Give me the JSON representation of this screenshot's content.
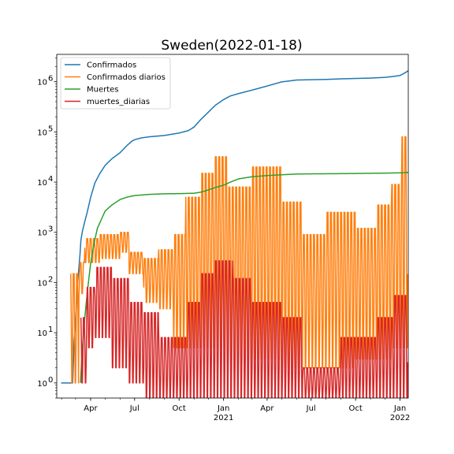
{
  "chart_data": {
    "type": "line",
    "title": "Sweden(2022-01-18)",
    "xlabel": "",
    "ylabel": "",
    "yscale": "log",
    "ylim": [
      0.5,
      3500000
    ],
    "xlim": [
      "2020-01-22",
      "2022-01-18"
    ],
    "grid": false,
    "legend_position": "top-left",
    "x_ticks": [
      {
        "date": "2020-04-01",
        "label": "Apr",
        "sublabel": ""
      },
      {
        "date": "2020-07-01",
        "label": "Jul",
        "sublabel": ""
      },
      {
        "date": "2020-10-01",
        "label": "Oct",
        "sublabel": ""
      },
      {
        "date": "2021-01-01",
        "label": "Jan",
        "sublabel": "2021"
      },
      {
        "date": "2021-04-01",
        "label": "Apr",
        "sublabel": ""
      },
      {
        "date": "2021-07-01",
        "label": "Jul",
        "sublabel": ""
      },
      {
        "date": "2021-10-01",
        "label": "Oct",
        "sublabel": ""
      },
      {
        "date": "2022-01-01",
        "label": "Jan",
        "sublabel": "2022"
      }
    ],
    "y_ticks": [
      {
        "value": 1,
        "base": "10",
        "exp": "0"
      },
      {
        "value": 10,
        "base": "10",
        "exp": "1"
      },
      {
        "value": 100,
        "base": "10",
        "exp": "2"
      },
      {
        "value": 1000,
        "base": "10",
        "exp": "3"
      },
      {
        "value": 10000,
        "base": "10",
        "exp": "4"
      },
      {
        "value": 100000,
        "base": "10",
        "exp": "5"
      },
      {
        "value": 1000000,
        "base": "10",
        "exp": "6"
      }
    ],
    "series": [
      {
        "name": "Confirmados",
        "color": "#1f77b4",
        "style": "cumulative",
        "points": [
          [
            "2020-01-31",
            1
          ],
          [
            "2020-02-24",
            1
          ],
          [
            "2020-02-27",
            7
          ],
          [
            "2020-03-01",
            15
          ],
          [
            "2020-03-05",
            94
          ],
          [
            "2020-03-10",
            355
          ],
          [
            "2020-03-12",
            700
          ],
          [
            "2020-03-15",
            1040
          ],
          [
            "2020-03-20",
            1640
          ],
          [
            "2020-03-25",
            2510
          ],
          [
            "2020-04-01",
            4950
          ],
          [
            "2020-04-10",
            9690
          ],
          [
            "2020-04-20",
            14800
          ],
          [
            "2020-05-01",
            21500
          ],
          [
            "2020-05-15",
            29200
          ],
          [
            "2020-06-01",
            38600
          ],
          [
            "2020-06-15",
            53300
          ],
          [
            "2020-06-25",
            65000
          ],
          [
            "2020-07-01",
            70000
          ],
          [
            "2020-07-15",
            76000
          ],
          [
            "2020-08-01",
            80000
          ],
          [
            "2020-09-01",
            85000
          ],
          [
            "2020-10-01",
            95000
          ],
          [
            "2020-10-20",
            106000
          ],
          [
            "2020-11-01",
            125000
          ],
          [
            "2020-11-15",
            177000
          ],
          [
            "2020-12-01",
            250000
          ],
          [
            "2020-12-15",
            340000
          ],
          [
            "2021-01-01",
            440000
          ],
          [
            "2021-01-15",
            520000
          ],
          [
            "2021-02-01",
            580000
          ],
          [
            "2021-03-01",
            680000
          ],
          [
            "2021-04-01",
            820000
          ],
          [
            "2021-05-01",
            990000
          ],
          [
            "2021-06-01",
            1080000
          ],
          [
            "2021-07-01",
            1095000
          ],
          [
            "2021-08-01",
            1110000
          ],
          [
            "2021-09-01",
            1140000
          ],
          [
            "2021-10-01",
            1160000
          ],
          [
            "2021-11-01",
            1180000
          ],
          [
            "2021-12-01",
            1220000
          ],
          [
            "2021-12-20",
            1280000
          ],
          [
            "2022-01-01",
            1330000
          ],
          [
            "2022-01-10",
            1480000
          ],
          [
            "2022-01-18",
            1650000
          ]
        ]
      },
      {
        "name": "Confirmados diarios",
        "color": "#ff7f0e",
        "style": "daily",
        "segments": [
          {
            "start": "2020-02-20",
            "end": "2020-03-08",
            "lo": 1,
            "hi": 150
          },
          {
            "start": "2020-03-08",
            "end": "2020-03-20",
            "lo": 60,
            "hi": 250
          },
          {
            "start": "2020-03-20",
            "end": "2020-04-20",
            "lo": 250,
            "hi": 750
          },
          {
            "start": "2020-04-20",
            "end": "2020-06-01",
            "lo": 300,
            "hi": 900
          },
          {
            "start": "2020-06-01",
            "end": "2020-06-20",
            "lo": 400,
            "hi": 1000
          },
          {
            "start": "2020-06-20",
            "end": "2020-07-20",
            "lo": 150,
            "hi": 400
          },
          {
            "start": "2020-07-20",
            "end": "2020-08-20",
            "lo": 40,
            "hi": 300
          },
          {
            "start": "2020-08-20",
            "end": "2020-09-20",
            "lo": 30,
            "hi": 450
          },
          {
            "start": "2020-09-20",
            "end": "2020-10-15",
            "lo": 5,
            "hi": 900
          },
          {
            "start": "2020-10-15",
            "end": "2020-11-15",
            "lo": 5,
            "hi": 5000
          },
          {
            "start": "2020-11-15",
            "end": "2020-12-15",
            "lo": 5,
            "hi": 15000
          },
          {
            "start": "2020-12-15",
            "end": "2021-01-10",
            "lo": 5,
            "hi": 32000
          },
          {
            "start": "2021-01-10",
            "end": "2021-03-01",
            "lo": 3,
            "hi": 8000
          },
          {
            "start": "2021-03-01",
            "end": "2021-05-01",
            "lo": 3,
            "hi": 20000
          },
          {
            "start": "2021-05-01",
            "end": "2021-06-15",
            "lo": 2,
            "hi": 4000
          },
          {
            "start": "2021-06-15",
            "end": "2021-08-01",
            "lo": 2,
            "hi": 900
          },
          {
            "start": "2021-08-01",
            "end": "2021-10-01",
            "lo": 2,
            "hi": 2500
          },
          {
            "start": "2021-10-01",
            "end": "2021-11-15",
            "lo": 3,
            "hi": 1200
          },
          {
            "start": "2021-11-15",
            "end": "2021-12-15",
            "lo": 3,
            "hi": 3500
          },
          {
            "start": "2021-12-15",
            "end": "2022-01-05",
            "lo": 5,
            "hi": 9000
          },
          {
            "start": "2022-01-05",
            "end": "2022-01-18",
            "lo": 5,
            "hi": 80000
          }
        ]
      },
      {
        "name": "Muertes",
        "color": "#2ca02c",
        "style": "cumulative",
        "points": [
          [
            "2020-03-11",
            1
          ],
          [
            "2020-03-15",
            5
          ],
          [
            "2020-03-20",
            20
          ],
          [
            "2020-03-25",
            62
          ],
          [
            "2020-04-01",
            239
          ],
          [
            "2020-04-08",
            591
          ],
          [
            "2020-04-15",
            1200
          ],
          [
            "2020-05-01",
            2650
          ],
          [
            "2020-05-15",
            3500
          ],
          [
            "2020-06-01",
            4500
          ],
          [
            "2020-06-15",
            5000
          ],
          [
            "2020-07-01",
            5400
          ],
          [
            "2020-08-01",
            5700
          ],
          [
            "2020-09-01",
            5850
          ],
          [
            "2020-10-01",
            5900
          ],
          [
            "2020-11-01",
            6000
          ],
          [
            "2020-11-15",
            6300
          ],
          [
            "2020-12-01",
            7000
          ],
          [
            "2020-12-15",
            7800
          ],
          [
            "2021-01-01",
            8700
          ],
          [
            "2021-01-15",
            10000
          ],
          [
            "2021-02-01",
            11600
          ],
          [
            "2021-03-01",
            12800
          ],
          [
            "2021-04-01",
            13500
          ],
          [
            "2021-05-01",
            14000
          ],
          [
            "2021-06-01",
            14500
          ],
          [
            "2021-07-01",
            14600
          ],
          [
            "2021-09-01",
            14750
          ],
          [
            "2021-11-01",
            15000
          ],
          [
            "2021-12-01",
            15100
          ],
          [
            "2022-01-01",
            15300
          ],
          [
            "2022-01-18",
            15600
          ]
        ]
      },
      {
        "name": "muertes_diarias",
        "color": "#d62728",
        "style": "daily",
        "segments": [
          {
            "start": "2020-03-12",
            "end": "2020-03-25",
            "lo": 1,
            "hi": 20
          },
          {
            "start": "2020-03-25",
            "end": "2020-04-10",
            "lo": 5,
            "hi": 80
          },
          {
            "start": "2020-04-10",
            "end": "2020-05-15",
            "lo": 8,
            "hi": 200
          },
          {
            "start": "2020-05-15",
            "end": "2020-06-20",
            "lo": 2,
            "hi": 120
          },
          {
            "start": "2020-06-20",
            "end": "2020-07-20",
            "lo": 1,
            "hi": 40
          },
          {
            "start": "2020-07-20",
            "end": "2020-08-20",
            "lo": 0.5,
            "hi": 25
          },
          {
            "start": "2020-08-20",
            "end": "2020-10-20",
            "lo": 0.5,
            "hi": 8
          },
          {
            "start": "2020-10-20",
            "end": "2020-11-15",
            "lo": 0.5,
            "hi": 40
          },
          {
            "start": "2020-11-15",
            "end": "2020-12-15",
            "lo": 0.5,
            "hi": 150
          },
          {
            "start": "2020-12-15",
            "end": "2021-01-20",
            "lo": 0.5,
            "hi": 270
          },
          {
            "start": "2021-01-20",
            "end": "2021-03-01",
            "lo": 0.5,
            "hi": 120
          },
          {
            "start": "2021-03-01",
            "end": "2021-05-01",
            "lo": 0.5,
            "hi": 40
          },
          {
            "start": "2021-05-01",
            "end": "2021-06-15",
            "lo": 0.5,
            "hi": 20
          },
          {
            "start": "2021-06-15",
            "end": "2021-09-01",
            "lo": 0.5,
            "hi": 2
          },
          {
            "start": "2021-09-01",
            "end": "2021-11-15",
            "lo": 0.5,
            "hi": 8
          },
          {
            "start": "2021-11-15",
            "end": "2021-12-20",
            "lo": 0.5,
            "hi": 20
          },
          {
            "start": "2021-12-20",
            "end": "2022-01-18",
            "lo": 0.5,
            "hi": 55
          }
        ]
      }
    ]
  }
}
